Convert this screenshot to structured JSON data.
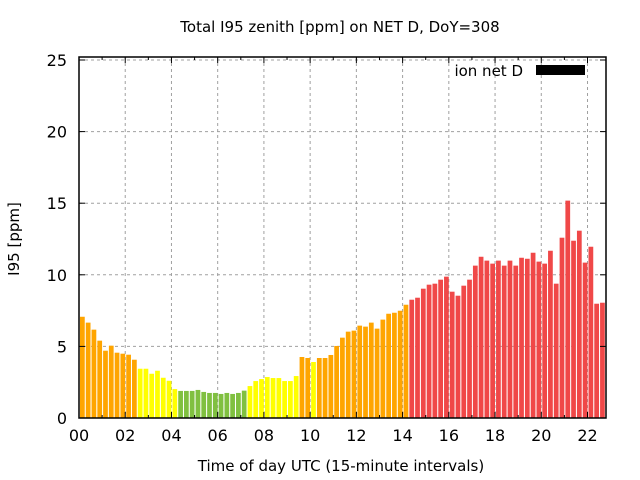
{
  "chart_data": {
    "type": "bar",
    "title": "Total I95 zenith [ppm] on NET D, DoY=308",
    "xlabel": "Time of day UTC (15-minute intervals)",
    "ylabel": "I95 [ppm]",
    "xlim": [
      0,
      22.8
    ],
    "ylim": [
      0,
      25
    ],
    "grid": true,
    "legend": {
      "position": "top-right",
      "entries": [
        {
          "label": "ion net D",
          "color": "#000000"
        }
      ]
    },
    "x_ticks": [
      "00",
      "02",
      "04",
      "06",
      "08",
      "10",
      "12",
      "14",
      "16",
      "18",
      "20",
      "22"
    ],
    "x_tick_values": [
      0,
      2,
      4,
      6,
      8,
      10,
      12,
      14,
      16,
      18,
      20,
      22
    ],
    "y_ticks": [
      "0",
      "5",
      "10",
      "15",
      "20",
      "25"
    ],
    "y_tick_values": [
      0,
      5,
      10,
      15,
      20,
      25
    ],
    "interval_hours": 0.25,
    "color_levels": {
      "green": "#80C040",
      "yellow": "#FFFF00",
      "orange": "#FFA500",
      "red": "#F04848"
    },
    "values": [
      7.07,
      6.66,
      6.17,
      5.4,
      4.7,
      5.05,
      4.56,
      4.49,
      4.42,
      4.07,
      3.44,
      3.44,
      3.09,
      3.3,
      2.81,
      2.6,
      2.02,
      1.89,
      1.89,
      1.89,
      1.96,
      1.82,
      1.75,
      1.75,
      1.68,
      1.75,
      1.68,
      1.75,
      1.91,
      2.23,
      2.58,
      2.72,
      2.86,
      2.79,
      2.79,
      2.58,
      2.58,
      2.93,
      4.26,
      4.19,
      3.91,
      4.19,
      4.19,
      4.4,
      5.03,
      5.61,
      6.03,
      6.1,
      6.45,
      6.38,
      6.66,
      6.24,
      6.87,
      7.28,
      7.35,
      7.49,
      7.91,
      8.26,
      8.4,
      9.03,
      9.31,
      9.38,
      9.66,
      9.87,
      8.82,
      8.54,
      9.24,
      9.66,
      10.64,
      11.26,
      10.99,
      10.78,
      10.99,
      10.64,
      10.99,
      10.64,
      11.19,
      11.12,
      11.54,
      10.92,
      10.78,
      11.68,
      9.38,
      12.59,
      15.18,
      12.38,
      13.08,
      10.85,
      11.96,
      7.98,
      8.05,
      9.73
    ],
    "colors": [
      "orange",
      "orange",
      "orange",
      "orange",
      "orange",
      "orange",
      "orange",
      "orange",
      "orange",
      "orange",
      "yellow",
      "yellow",
      "yellow",
      "yellow",
      "yellow",
      "yellow",
      "yellow",
      "green",
      "green",
      "green",
      "green",
      "green",
      "green",
      "green",
      "green",
      "green",
      "green",
      "green",
      "green",
      "yellow",
      "yellow",
      "yellow",
      "yellow",
      "yellow",
      "yellow",
      "yellow",
      "yellow",
      "yellow",
      "orange",
      "orange",
      "yellow",
      "orange",
      "orange",
      "orange",
      "orange",
      "orange",
      "orange",
      "orange",
      "orange",
      "orange",
      "orange",
      "orange",
      "orange",
      "orange",
      "orange",
      "orange",
      "orange",
      "red",
      "red",
      "red",
      "red",
      "red",
      "red",
      "red",
      "red",
      "red",
      "red",
      "red",
      "red",
      "red",
      "red",
      "red",
      "red",
      "red",
      "red",
      "red",
      "red",
      "red",
      "red",
      "red",
      "red",
      "red",
      "red",
      "red",
      "red",
      "red",
      "red",
      "red",
      "red",
      "red",
      "red",
      "red"
    ]
  }
}
